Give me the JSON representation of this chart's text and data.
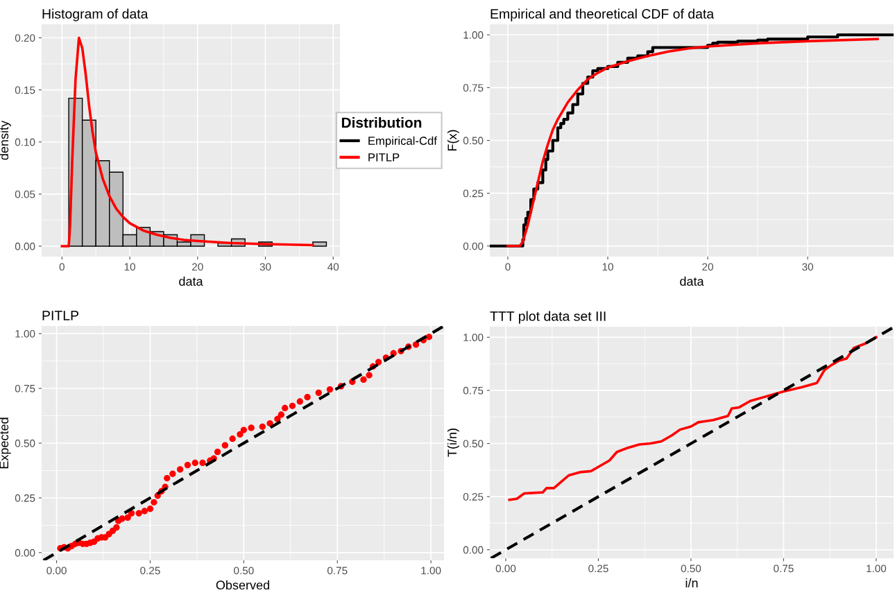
{
  "chart_data": [
    {
      "type": "histogram",
      "title": "Histogram of data",
      "xlabel": "data",
      "ylabel": "density",
      "bins": [
        -1,
        1,
        3,
        5,
        7,
        9,
        11,
        13,
        15,
        17,
        19,
        21,
        23,
        25,
        27,
        29,
        31,
        33,
        35,
        37,
        39
      ],
      "values": [
        0,
        0.142,
        0.121,
        0.082,
        0.071,
        0.011,
        0.018,
        0.014,
        0.011,
        0.004,
        0.011,
        0,
        0.003,
        0.007,
        0,
        0.004,
        0,
        0,
        0,
        0.004
      ],
      "color": "#bebebe",
      "xlim": [
        -3,
        41
      ],
      "ylim": [
        -0.01,
        0.213
      ],
      "xticks": [
        0,
        10,
        20,
        30,
        40
      ],
      "yticks": [
        {
          "value": 0,
          "label": "0.00"
        },
        {
          "value": 0.05,
          "label": "0.05"
        },
        {
          "value": 0.1,
          "label": "0.10"
        },
        {
          "value": 0.15,
          "label": "0.15"
        },
        {
          "value": 0.2,
          "label": "0.20"
        }
      ],
      "grid": true,
      "series": [
        {
          "type": "line",
          "color": "#ff0000",
          "x": [
            0,
            1,
            1.2,
            1.5,
            2,
            2.5,
            3,
            3.5,
            4,
            4.5,
            5,
            6,
            7,
            8,
            9,
            10,
            12,
            14,
            16,
            18,
            20,
            25,
            30,
            37
          ],
          "values": [
            0,
            0,
            0.02,
            0.08,
            0.16,
            0.2,
            0.19,
            0.165,
            0.135,
            0.11,
            0.09,
            0.065,
            0.048,
            0.036,
            0.028,
            0.022,
            0.015,
            0.011,
            0.008,
            0.006,
            0.005,
            0.003,
            0.002,
            0.001
          ]
        }
      ]
    },
    {
      "type": "step",
      "title": "Empirical and theoretical CDF of data",
      "xlabel": "data",
      "ylabel": "F(x)",
      "xlim": [
        -1.8,
        38.6
      ],
      "ylim": [
        -0.05,
        1.05
      ],
      "xticks": [
        0,
        10,
        20,
        30
      ],
      "yticks": [
        {
          "value": 0,
          "label": "0.00"
        },
        {
          "value": 0.25,
          "label": "0.25"
        },
        {
          "value": 0.5,
          "label": "0.50"
        },
        {
          "value": 0.75,
          "label": "0.75"
        },
        {
          "value": 1,
          "label": "1.00"
        }
      ],
      "grid": true,
      "legend": "left",
      "legend_title": "Distribution",
      "series": [
        {
          "type": "step",
          "name": "Empirical-Cdf",
          "color": "#000000",
          "x": [
            -1.8,
            1.5,
            1.6,
            1.8,
            2.0,
            2.3,
            2.6,
            3,
            3.5,
            3.8,
            4,
            4.5,
            5,
            5.3,
            5.6,
            6,
            6.5,
            7,
            7.5,
            8,
            8.5,
            9,
            10,
            11,
            12,
            13,
            14,
            14.5,
            15.5,
            18,
            20,
            20.5,
            21,
            23,
            25,
            26,
            30,
            33,
            37,
            38.6
          ],
          "values": [
            0,
            0.03,
            0.1,
            0.13,
            0.16,
            0.22,
            0.27,
            0.3,
            0.36,
            0.41,
            0.45,
            0.5,
            0.56,
            0.58,
            0.6,
            0.63,
            0.67,
            0.72,
            0.77,
            0.8,
            0.83,
            0.84,
            0.85,
            0.87,
            0.89,
            0.9,
            0.92,
            0.94,
            0.94,
            0.94,
            0.95,
            0.96,
            0.965,
            0.97,
            0.975,
            0.98,
            0.99,
            1.0,
            1.0,
            1.0
          ]
        },
        {
          "type": "line",
          "name": "PITLP",
          "color": "#ff0000",
          "x": [
            0,
            1.2,
            1.5,
            2,
            2.5,
            3,
            3.5,
            4,
            4.5,
            5,
            6,
            7,
            8,
            9,
            10,
            12,
            14,
            16,
            18,
            20,
            25,
            30,
            37
          ],
          "values": [
            0,
            0,
            0.02,
            0.1,
            0.2,
            0.3,
            0.4,
            0.48,
            0.55,
            0.6,
            0.68,
            0.74,
            0.79,
            0.82,
            0.845,
            0.875,
            0.9,
            0.92,
            0.935,
            0.945,
            0.96,
            0.97,
            0.98
          ]
        }
      ]
    },
    {
      "type": "scatter",
      "title": "PITLP",
      "xlabel": "Observed",
      "ylabel": "Expected",
      "xlim": [
        -0.04,
        1.035
      ],
      "ylim": [
        -0.035,
        1.035
      ],
      "xticks": [
        {
          "value": 0,
          "label": "0.00"
        },
        {
          "value": 0.25,
          "label": "0.25"
        },
        {
          "value": 0.5,
          "label": "0.50"
        },
        {
          "value": 0.75,
          "label": "0.75"
        },
        {
          "value": 1,
          "label": "1.00"
        }
      ],
      "yticks": [
        {
          "value": 0,
          "label": "0.00"
        },
        {
          "value": 0.25,
          "label": "0.25"
        },
        {
          "value": 0.5,
          "label": "0.50"
        },
        {
          "value": 0.75,
          "label": "0.75"
        },
        {
          "value": 1,
          "label": "1.00"
        }
      ],
      "grid": true,
      "series": [
        {
          "type": "scatter",
          "marker": "circle",
          "color": "#ff0000",
          "x": [
            0.01,
            0.02,
            0.03,
            0.04,
            0.05,
            0.06,
            0.07,
            0.08,
            0.09,
            0.1,
            0.11,
            0.12,
            0.13,
            0.14,
            0.15,
            0.16,
            0.165,
            0.175,
            0.19,
            0.2,
            0.22,
            0.235,
            0.25,
            0.26,
            0.27,
            0.28,
            0.29,
            0.295,
            0.31,
            0.33,
            0.35,
            0.37,
            0.39,
            0.41,
            0.42,
            0.43,
            0.45,
            0.47,
            0.49,
            0.5,
            0.52,
            0.55,
            0.57,
            0.59,
            0.6,
            0.61,
            0.63,
            0.65,
            0.67,
            0.7,
            0.73,
            0.76,
            0.79,
            0.82,
            0.835,
            0.845,
            0.86,
            0.88,
            0.9,
            0.92,
            0.94,
            0.96,
            0.98,
            0.995
          ],
          "values": [
            0.02,
            0.025,
            0.02,
            0.03,
            0.04,
            0.045,
            0.04,
            0.04,
            0.045,
            0.05,
            0.065,
            0.07,
            0.07,
            0.085,
            0.1,
            0.115,
            0.145,
            0.155,
            0.16,
            0.18,
            0.18,
            0.19,
            0.2,
            0.23,
            0.26,
            0.28,
            0.3,
            0.34,
            0.36,
            0.38,
            0.4,
            0.41,
            0.41,
            0.42,
            0.43,
            0.46,
            0.49,
            0.52,
            0.54,
            0.56,
            0.57,
            0.575,
            0.59,
            0.61,
            0.63,
            0.66,
            0.67,
            0.69,
            0.71,
            0.73,
            0.745,
            0.76,
            0.78,
            0.79,
            0.81,
            0.85,
            0.87,
            0.89,
            0.91,
            0.92,
            0.94,
            0.95,
            0.97,
            0.985
          ]
        },
        {
          "type": "line",
          "color": "#000000",
          "line_style": "dashed",
          "x": [
            -0.035,
            1.035
          ],
          "values": [
            -0.035,
            1.035
          ]
        }
      ]
    },
    {
      "type": "line",
      "title": "TTT plot data set III",
      "xlabel": "i/n",
      "ylabel": "T(i/n)",
      "xlim": [
        -0.043,
        1.047
      ],
      "ylim": [
        -0.04,
        1.05
      ],
      "xticks": [
        {
          "value": 0,
          "label": "0.00"
        },
        {
          "value": 0.25,
          "label": "0.25"
        },
        {
          "value": 0.5,
          "label": "0.50"
        },
        {
          "value": 0.75,
          "label": "0.75"
        },
        {
          "value": 1,
          "label": "1.00"
        }
      ],
      "yticks": [
        {
          "value": 0,
          "label": "0.00"
        },
        {
          "value": 0.25,
          "label": "0.25"
        },
        {
          "value": 0.5,
          "label": "0.50"
        },
        {
          "value": 0.75,
          "label": "0.75"
        },
        {
          "value": 1,
          "label": "1.00"
        }
      ],
      "grid": true,
      "series": [
        {
          "type": "line",
          "color": "#ff0000",
          "x": [
            0.01,
            0.03,
            0.05,
            0.1,
            0.11,
            0.13,
            0.15,
            0.17,
            0.2,
            0.23,
            0.25,
            0.28,
            0.3,
            0.33,
            0.36,
            0.39,
            0.42,
            0.45,
            0.47,
            0.5,
            0.52,
            0.56,
            0.6,
            0.61,
            0.63,
            0.66,
            0.7,
            0.75,
            0.8,
            0.84,
            0.86,
            0.88,
            0.9,
            0.92,
            0.94,
            0.97,
            1.0
          ],
          "values": [
            0.235,
            0.24,
            0.265,
            0.27,
            0.29,
            0.29,
            0.32,
            0.35,
            0.365,
            0.37,
            0.39,
            0.42,
            0.46,
            0.48,
            0.495,
            0.5,
            0.51,
            0.54,
            0.565,
            0.58,
            0.6,
            0.61,
            0.63,
            0.665,
            0.67,
            0.7,
            0.72,
            0.745,
            0.765,
            0.785,
            0.845,
            0.87,
            0.89,
            0.9,
            0.95,
            0.97,
            1.0
          ]
        },
        {
          "type": "line",
          "color": "#000000",
          "line_style": "dashed",
          "x": [
            -0.04,
            1.047
          ],
          "values": [
            -0.04,
            1.047
          ]
        }
      ]
    }
  ]
}
